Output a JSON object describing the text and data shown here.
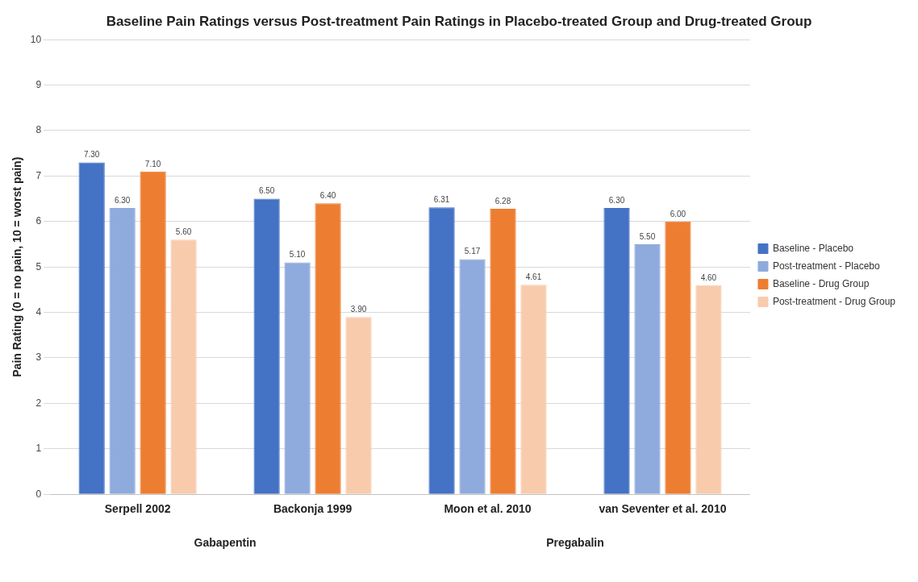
{
  "chart_data": {
    "type": "bar",
    "title": "Baseline Pain Ratings versus Post-treatment Pain Ratings in Placebo-treated Group and Drug-treated Group",
    "ylabel": "Pain Rating (0 = no pain, 10 = worst pain)",
    "categories": [
      "Serpell 2002",
      "Backonja 1999",
      "Moon et al. 2010",
      "van Seventer et al. 2010"
    ],
    "series": [
      {
        "name": "Baseline - Placebo",
        "color": "#4472c4",
        "values": [
          7.3,
          6.5,
          6.31,
          6.3
        ],
        "value_labels": [
          "7.30",
          "6.50",
          "6.31",
          "6.30"
        ]
      },
      {
        "name": "Post-treatment - Placebo",
        "color": "#8faadc",
        "values": [
          6.3,
          5.1,
          5.17,
          5.5
        ],
        "value_labels": [
          "6.30",
          "5.10",
          "5.17",
          "5.50"
        ]
      },
      {
        "name": "Baseline - Drug Group",
        "color": "#ed7d31",
        "values": [
          7.1,
          6.4,
          6.28,
          6.0
        ],
        "value_labels": [
          "7.10",
          "6.40",
          "6.28",
          "6.00"
        ]
      },
      {
        "name": "Post-treatment - Drug Group",
        "color": "#f8cbad",
        "values": [
          5.6,
          3.9,
          4.61,
          4.6
        ],
        "value_labels": [
          "5.60",
          "3.90",
          "4.61",
          "4.60"
        ]
      }
    ],
    "annotations": [
      "Gabapentin",
      "Pregabalin"
    ],
    "ylim": [
      0,
      10
    ],
    "yticks": [
      0,
      1,
      2,
      3,
      4,
      5,
      6,
      7,
      8,
      9,
      10
    ],
    "grid": "y",
    "legend": "right"
  }
}
